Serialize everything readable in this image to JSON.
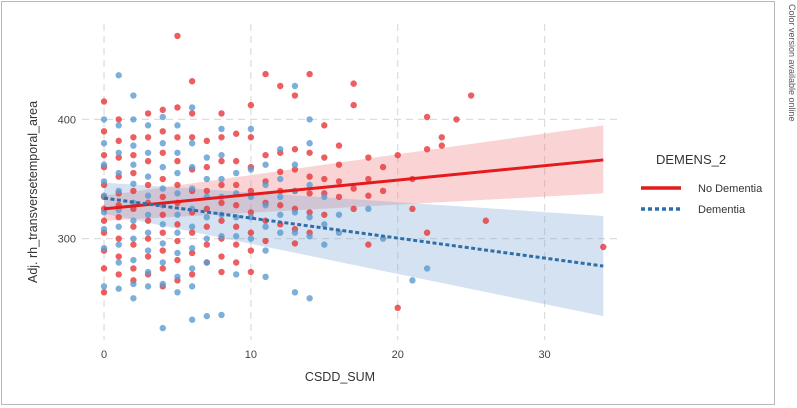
{
  "side_note": "Color version available online",
  "chart_data": {
    "type": "scatter",
    "title": "",
    "xlabel": "CSDD_SUM",
    "ylabel": "Adj. rh_transversetemporal_area",
    "xlim": [
      -1.5,
      35
    ],
    "ylim": [
      215,
      480
    ],
    "x_ticks": [
      0,
      10,
      20,
      30
    ],
    "y_ticks": [
      300,
      400
    ],
    "grid": true,
    "legend": {
      "title": "DEMENS_2",
      "position": "right",
      "entries": [
        {
          "label": "No Dementia",
          "color": "#e41a1c",
          "style": "solid"
        },
        {
          "label": "Dementia",
          "color": "#2f6fa8",
          "style": "dashed"
        }
      ]
    },
    "series": [
      {
        "name": "No Dementia",
        "color": "#e8363a",
        "points": [
          [
            0,
            415
          ],
          [
            0,
            390
          ],
          [
            0,
            370
          ],
          [
            0,
            360
          ],
          [
            0,
            345
          ],
          [
            0,
            335
          ],
          [
            0,
            325
          ],
          [
            0,
            315
          ],
          [
            0,
            305
          ],
          [
            0,
            290
          ],
          [
            0,
            275
          ],
          [
            0,
            255
          ],
          [
            1,
            400
          ],
          [
            1,
            382
          ],
          [
            1,
            368
          ],
          [
            1,
            352
          ],
          [
            1,
            338
          ],
          [
            1,
            328
          ],
          [
            1,
            318
          ],
          [
            1,
            300
          ],
          [
            1,
            285
          ],
          [
            1,
            270
          ],
          [
            2,
            385
          ],
          [
            2,
            370
          ],
          [
            2,
            355
          ],
          [
            2,
            340
          ],
          [
            2,
            325
          ],
          [
            2,
            310
          ],
          [
            2,
            295
          ],
          [
            2,
            275
          ],
          [
            2,
            265
          ],
          [
            3,
            405
          ],
          [
            3,
            385
          ],
          [
            3,
            365
          ],
          [
            3,
            345
          ],
          [
            3,
            330
          ],
          [
            3,
            315
          ],
          [
            3,
            300
          ],
          [
            3,
            285
          ],
          [
            3,
            270
          ],
          [
            4,
            408
          ],
          [
            4,
            390
          ],
          [
            4,
            372
          ],
          [
            4,
            350
          ],
          [
            4,
            335
          ],
          [
            4,
            320
          ],
          [
            4,
            305
          ],
          [
            4,
            290
          ],
          [
            4,
            275
          ],
          [
            4,
            260
          ],
          [
            5,
            470
          ],
          [
            5,
            410
          ],
          [
            5,
            385
          ],
          [
            5,
            365
          ],
          [
            5,
            345
          ],
          [
            5,
            330
          ],
          [
            5,
            312
          ],
          [
            5,
            298
          ],
          [
            5,
            282
          ],
          [
            5,
            265
          ],
          [
            6,
            432
          ],
          [
            6,
            405
          ],
          [
            6,
            385
          ],
          [
            6,
            358
          ],
          [
            6,
            340
          ],
          [
            6,
            322
          ],
          [
            6,
            305
          ],
          [
            6,
            288
          ],
          [
            6,
            270
          ],
          [
            7,
            382
          ],
          [
            7,
            360
          ],
          [
            7,
            340
          ],
          [
            7,
            325
          ],
          [
            7,
            310
          ],
          [
            7,
            295
          ],
          [
            7,
            280
          ],
          [
            8,
            405
          ],
          [
            8,
            385
          ],
          [
            8,
            365
          ],
          [
            8,
            345
          ],
          [
            8,
            330
          ],
          [
            8,
            315
          ],
          [
            8,
            300
          ],
          [
            8,
            285
          ],
          [
            8,
            272
          ],
          [
            9,
            388
          ],
          [
            9,
            365
          ],
          [
            9,
            345
          ],
          [
            9,
            328
          ],
          [
            9,
            310
          ],
          [
            9,
            295
          ],
          [
            9,
            280
          ],
          [
            10,
            412
          ],
          [
            10,
            385
          ],
          [
            10,
            360
          ],
          [
            10,
            340
          ],
          [
            10,
            322
          ],
          [
            10,
            305
          ],
          [
            10,
            290
          ],
          [
            10,
            272
          ],
          [
            11,
            438
          ],
          [
            11,
            370
          ],
          [
            11,
            348
          ],
          [
            11,
            330
          ],
          [
            11,
            315
          ],
          [
            11,
            298
          ],
          [
            12,
            428
          ],
          [
            12,
            372
          ],
          [
            12,
            356
          ],
          [
            12,
            340
          ],
          [
            12,
            328
          ],
          [
            12,
            312
          ],
          [
            13,
            420
          ],
          [
            13,
            375
          ],
          [
            13,
            358
          ],
          [
            13,
            340
          ],
          [
            13,
            325
          ],
          [
            13,
            308
          ],
          [
            13,
            296
          ],
          [
            14,
            438
          ],
          [
            14,
            372
          ],
          [
            14,
            352
          ],
          [
            14,
            338
          ],
          [
            14,
            322
          ],
          [
            14,
            305
          ],
          [
            15,
            395
          ],
          [
            15,
            368
          ],
          [
            15,
            350
          ],
          [
            15,
            338
          ],
          [
            15,
            320
          ],
          [
            16,
            378
          ],
          [
            16,
            362
          ],
          [
            16,
            348
          ],
          [
            16,
            335
          ],
          [
            17,
            430
          ],
          [
            17,
            412
          ],
          [
            17,
            342
          ],
          [
            17,
            325
          ],
          [
            18,
            368
          ],
          [
            18,
            350
          ],
          [
            18,
            336
          ],
          [
            18,
            295
          ],
          [
            19,
            360
          ],
          [
            19,
            340
          ],
          [
            20,
            370
          ],
          [
            20,
            242
          ],
          [
            21,
            350
          ],
          [
            21,
            325
          ],
          [
            22,
            402
          ],
          [
            22,
            375
          ],
          [
            22,
            305
          ],
          [
            23,
            385
          ],
          [
            23,
            378
          ],
          [
            24,
            400
          ],
          [
            25,
            420
          ],
          [
            26,
            315
          ],
          [
            34,
            293
          ]
        ]
      },
      {
        "name": "Dementia",
        "color": "#5b9bd0",
        "points": [
          [
            0,
            400
          ],
          [
            0,
            380
          ],
          [
            0,
            362
          ],
          [
            0,
            348
          ],
          [
            0,
            336
          ],
          [
            0,
            322
          ],
          [
            0,
            308
          ],
          [
            0,
            292
          ],
          [
            0,
            260
          ],
          [
            1,
            437
          ],
          [
            1,
            395
          ],
          [
            1,
            372
          ],
          [
            1,
            355
          ],
          [
            1,
            340
          ],
          [
            1,
            324
          ],
          [
            1,
            310
          ],
          [
            1,
            295
          ],
          [
            1,
            280
          ],
          [
            1,
            258
          ],
          [
            2,
            420
          ],
          [
            2,
            400
          ],
          [
            2,
            378
          ],
          [
            2,
            362
          ],
          [
            2,
            346
          ],
          [
            2,
            330
          ],
          [
            2,
            315
          ],
          [
            2,
            300
          ],
          [
            2,
            282
          ],
          [
            2,
            262
          ],
          [
            2,
            250
          ],
          [
            3,
            395
          ],
          [
            3,
            372
          ],
          [
            3,
            352
          ],
          [
            3,
            336
          ],
          [
            3,
            320
          ],
          [
            3,
            305
          ],
          [
            3,
            290
          ],
          [
            3,
            272
          ],
          [
            3,
            260
          ],
          [
            4,
            402
          ],
          [
            4,
            380
          ],
          [
            4,
            360
          ],
          [
            4,
            342
          ],
          [
            4,
            328
          ],
          [
            4,
            312
          ],
          [
            4,
            296
          ],
          [
            4,
            280
          ],
          [
            4,
            262
          ],
          [
            4,
            225
          ],
          [
            5,
            395
          ],
          [
            5,
            372
          ],
          [
            5,
            355
          ],
          [
            5,
            338
          ],
          [
            5,
            320
          ],
          [
            5,
            305
          ],
          [
            5,
            288
          ],
          [
            5,
            268
          ],
          [
            5,
            255
          ],
          [
            6,
            410
          ],
          [
            6,
            380
          ],
          [
            6,
            360
          ],
          [
            6,
            342
          ],
          [
            6,
            325
          ],
          [
            6,
            310
          ],
          [
            6,
            292
          ],
          [
            6,
            275
          ],
          [
            6,
            260
          ],
          [
            6,
            232
          ],
          [
            7,
            368
          ],
          [
            7,
            350
          ],
          [
            7,
            335
          ],
          [
            7,
            318
          ],
          [
            7,
            300
          ],
          [
            7,
            280
          ],
          [
            7,
            235
          ],
          [
            8,
            392
          ],
          [
            8,
            370
          ],
          [
            8,
            350
          ],
          [
            8,
            335
          ],
          [
            8,
            320
          ],
          [
            8,
            302
          ],
          [
            8,
            236
          ],
          [
            9,
            355
          ],
          [
            9,
            338
          ],
          [
            9,
            318
          ],
          [
            9,
            302
          ],
          [
            9,
            270
          ],
          [
            10,
            392
          ],
          [
            10,
            358
          ],
          [
            10,
            335
          ],
          [
            10,
            318
          ],
          [
            10,
            300
          ],
          [
            11,
            362
          ],
          [
            11,
            345
          ],
          [
            11,
            328
          ],
          [
            11,
            310
          ],
          [
            11,
            290
          ],
          [
            11,
            268
          ],
          [
            12,
            375
          ],
          [
            12,
            350
          ],
          [
            12,
            335
          ],
          [
            12,
            320
          ],
          [
            12,
            305
          ],
          [
            13,
            428
          ],
          [
            13,
            362
          ],
          [
            13,
            340
          ],
          [
            13,
            322
          ],
          [
            13,
            305
          ],
          [
            13,
            255
          ],
          [
            14,
            400
          ],
          [
            14,
            380
          ],
          [
            14,
            345
          ],
          [
            14,
            318
          ],
          [
            14,
            302
          ],
          [
            14,
            250
          ],
          [
            15,
            335
          ],
          [
            15,
            312
          ],
          [
            15,
            295
          ],
          [
            16,
            320
          ],
          [
            16,
            305
          ],
          [
            18,
            325
          ],
          [
            19,
            300
          ],
          [
            21,
            265
          ],
          [
            22,
            275
          ]
        ]
      }
    ],
    "fits": [
      {
        "name": "No Dementia",
        "color": "#e41a1c",
        "style": "solid",
        "x": [
          0,
          34
        ],
        "y": [
          325,
          366
        ],
        "ci_lower": [
          315,
          338
        ],
        "ci_upper": [
          336,
          395
        ]
      },
      {
        "name": "Dementia",
        "color": "#2f6fa8",
        "style": "dashed",
        "x": [
          0,
          34
        ],
        "y": [
          334,
          277
        ],
        "ci_lower": [
          321,
          235
        ],
        "ci_upper": [
          347,
          319
        ]
      }
    ]
  }
}
